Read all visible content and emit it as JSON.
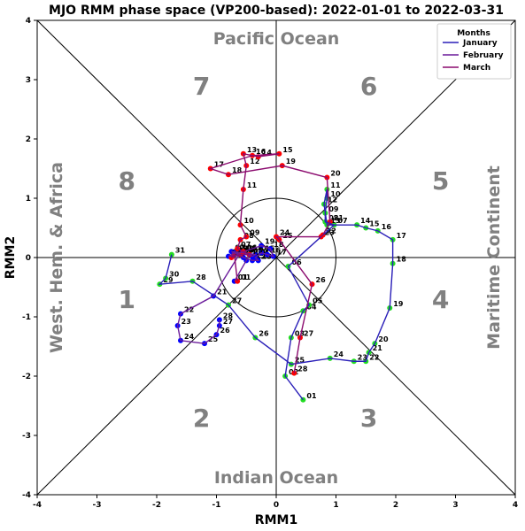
{
  "chart_data": {
    "type": "scatter",
    "title": "MJO RMM phase space (VP200-based): 2022-01-01 to 2022-03-31",
    "xlabel": "RMM1",
    "ylabel": "RMM2",
    "xlim": [
      -4,
      4
    ],
    "ylim": [
      -4,
      4
    ],
    "xticks": [
      "-4",
      "-3",
      "-2",
      "-1",
      "0",
      "1",
      "2",
      "3",
      "4"
    ],
    "yticks": [
      "-4",
      "-3",
      "-2",
      "-1",
      "0",
      "1",
      "2",
      "3",
      "4"
    ],
    "unit_circle_radius": 1,
    "phases": [
      {
        "label": "1",
        "x": -2.5,
        "y": -0.85
      },
      {
        "label": "2",
        "x": -1.25,
        "y": -2.85
      },
      {
        "label": "3",
        "x": 1.55,
        "y": -2.85
      },
      {
        "label": "4",
        "x": 2.75,
        "y": -0.85
      },
      {
        "label": "5",
        "x": 2.75,
        "y": 1.15
      },
      {
        "label": "6",
        "x": 1.55,
        "y": 2.75
      },
      {
        "label": "7",
        "x": -1.25,
        "y": 2.75
      },
      {
        "label": "8",
        "x": -2.5,
        "y": 1.15
      }
    ],
    "regions": {
      "top": "Pacific Ocean",
      "bottom": "Indian Ocean",
      "left": "West. Hem. & Africa",
      "right": "Maritime Continent"
    },
    "legend": {
      "title": "Months",
      "position": "top-right",
      "entries": [
        "January",
        "February",
        "March"
      ]
    },
    "series": [
      {
        "name": "January",
        "line_color": "#2a1fb8",
        "point_color": "#0000ff",
        "points": [
          {
            "d": "01",
            "x": 0.45,
            "y": -2.4
          },
          {
            "d": "02",
            "x": 0.15,
            "y": -2.0
          },
          {
            "d": "03",
            "x": 0.25,
            "y": -1.35
          },
          {
            "d": "04",
            "x": 0.45,
            "y": -0.9
          },
          {
            "d": "05",
            "x": 0.55,
            "y": -0.8
          },
          {
            "d": "06",
            "x": 0.2,
            "y": -0.15
          },
          {
            "d": "07",
            "x": 0.97,
            "y": 0.55
          },
          {
            "d": "08",
            "x": 0.82,
            "y": 0.6
          },
          {
            "d": "09",
            "x": 0.82,
            "y": 0.75
          },
          {
            "d": "10",
            "x": 0.85,
            "y": 1.0
          },
          {
            "d": "11",
            "x": 0.85,
            "y": 1.15
          },
          {
            "d": "12",
            "x": 0.8,
            "y": 0.9
          },
          {
            "d": "13",
            "x": 0.85,
            "y": 0.55
          },
          {
            "d": "14",
            "x": 1.35,
            "y": 0.55
          },
          {
            "d": "15",
            "x": 1.5,
            "y": 0.5
          },
          {
            "d": "16",
            "x": 1.7,
            "y": 0.45
          },
          {
            "d": "17",
            "x": 1.95,
            "y": 0.3
          },
          {
            "d": "18",
            "x": 1.95,
            "y": -0.1
          },
          {
            "d": "19",
            "x": 1.9,
            "y": -0.85
          },
          {
            "d": "20",
            "x": 1.65,
            "y": -1.45
          },
          {
            "d": "21",
            "x": 1.55,
            "y": -1.6
          },
          {
            "d": "22",
            "x": 1.5,
            "y": -1.75
          },
          {
            "d": "23",
            "x": 1.3,
            "y": -1.75
          },
          {
            "d": "24",
            "x": 0.9,
            "y": -1.7
          },
          {
            "d": "25",
            "x": 0.25,
            "y": -1.8
          },
          {
            "d": "26",
            "x": -0.35,
            "y": -1.35
          },
          {
            "d": "27",
            "x": -0.8,
            "y": -0.8
          },
          {
            "d": "28",
            "x": -1.4,
            "y": -0.4
          },
          {
            "d": "29",
            "x": -1.95,
            "y": -0.45
          },
          {
            "d": "30",
            "x": -1.85,
            "y": -0.35
          },
          {
            "d": "31",
            "x": -1.75,
            "y": 0.05
          }
        ]
      },
      {
        "name": "February",
        "line_color": "#6a1a9a",
        "point_color": "#0000ff",
        "points": [
          {
            "d": "01",
            "x": -0.7,
            "y": -0.4
          },
          {
            "d": "02",
            "x": -0.5,
            "y": -0.05
          },
          {
            "d": "03",
            "x": -0.45,
            "y": 0.05
          },
          {
            "d": "04",
            "x": -0.4,
            "y": 0.02
          },
          {
            "d": "05",
            "x": -0.35,
            "y": 0.05
          },
          {
            "d": "06",
            "x": -0.55,
            "y": 0.08
          },
          {
            "d": "07",
            "x": -0.75,
            "y": 0.1
          },
          {
            "d": "08",
            "x": -0.6,
            "y": 0.05
          },
          {
            "d": "09",
            "x": -0.8,
            "y": 0.02
          },
          {
            "d": "10",
            "x": -0.7,
            "y": 0.08
          },
          {
            "d": "11",
            "x": -0.55,
            "y": 0.0
          },
          {
            "d": "12",
            "x": -0.4,
            "y": -0.05
          },
          {
            "d": "13",
            "x": -0.3,
            "y": -0.05
          },
          {
            "d": "14",
            "x": -0.35,
            "y": 0.0
          },
          {
            "d": "15",
            "x": -0.25,
            "y": 0.08
          },
          {
            "d": "16",
            "x": -0.15,
            "y": 0.05
          },
          {
            "d": "17",
            "x": -0.05,
            "y": 0.02
          },
          {
            "d": "18",
            "x": -0.1,
            "y": 0.15
          },
          {
            "d": "19",
            "x": -0.25,
            "y": 0.2
          },
          {
            "d": "20",
            "x": -0.6,
            "y": 0.08
          },
          {
            "d": "21",
            "x": -1.05,
            "y": -0.65
          },
          {
            "d": "22",
            "x": -1.6,
            "y": -0.95
          },
          {
            "d": "23",
            "x": -1.65,
            "y": -1.15
          },
          {
            "d": "24",
            "x": -1.6,
            "y": -1.4
          },
          {
            "d": "25",
            "x": -1.2,
            "y": -1.45
          },
          {
            "d": "26",
            "x": -1.0,
            "y": -1.3
          },
          {
            "d": "27",
            "x": -0.95,
            "y": -1.15
          },
          {
            "d": "28",
            "x": -0.95,
            "y": -1.05
          }
        ]
      },
      {
        "name": "March",
        "line_color": "#8b0a6e",
        "point_color": "#ff0000",
        "points": [
          {
            "d": "01",
            "x": -0.65,
            "y": -0.4
          },
          {
            "d": "02",
            "x": -0.7,
            "y": 0.05
          },
          {
            "d": "03",
            "x": -0.75,
            "y": 0.0
          },
          {
            "d": "04",
            "x": -0.6,
            "y": 0.05
          },
          {
            "d": "05",
            "x": -0.45,
            "y": 0.05
          },
          {
            "d": "06",
            "x": -0.55,
            "y": 0.1
          },
          {
            "d": "07",
            "x": -0.65,
            "y": 0.15
          },
          {
            "d": "08",
            "x": -0.6,
            "y": 0.3
          },
          {
            "d": "09",
            "x": -0.5,
            "y": 0.35
          },
          {
            "d": "10",
            "x": -0.6,
            "y": 0.55
          },
          {
            "d": "11",
            "x": -0.55,
            "y": 1.15
          },
          {
            "d": "12",
            "x": -0.5,
            "y": 1.55
          },
          {
            "d": "13",
            "x": -0.55,
            "y": 1.75
          },
          {
            "d": "14",
            "x": -0.3,
            "y": 1.7
          },
          {
            "d": "15",
            "x": 0.05,
            "y": 1.75
          },
          {
            "d": "16",
            "x": -0.4,
            "y": 1.72
          },
          {
            "d": "17",
            "x": -1.1,
            "y": 1.5
          },
          {
            "d": "18",
            "x": -0.8,
            "y": 1.4
          },
          {
            "d": "19",
            "x": 0.1,
            "y": 1.55
          },
          {
            "d": "20",
            "x": 0.85,
            "y": 1.35
          },
          {
            "d": "21",
            "x": 0.9,
            "y": 0.6
          },
          {
            "d": "22",
            "x": 0.78,
            "y": 0.38
          },
          {
            "d": "23",
            "x": 0.75,
            "y": 0.35
          },
          {
            "d": "24",
            "x": 0.0,
            "y": 0.35
          },
          {
            "d": "25",
            "x": 0.05,
            "y": 0.3
          },
          {
            "d": "26",
            "x": 0.6,
            "y": -0.45
          },
          {
            "d": "27",
            "x": 0.4,
            "y": -1.35
          },
          {
            "d": "28",
            "x": 0.3,
            "y": -1.95
          }
        ]
      }
    ]
  }
}
